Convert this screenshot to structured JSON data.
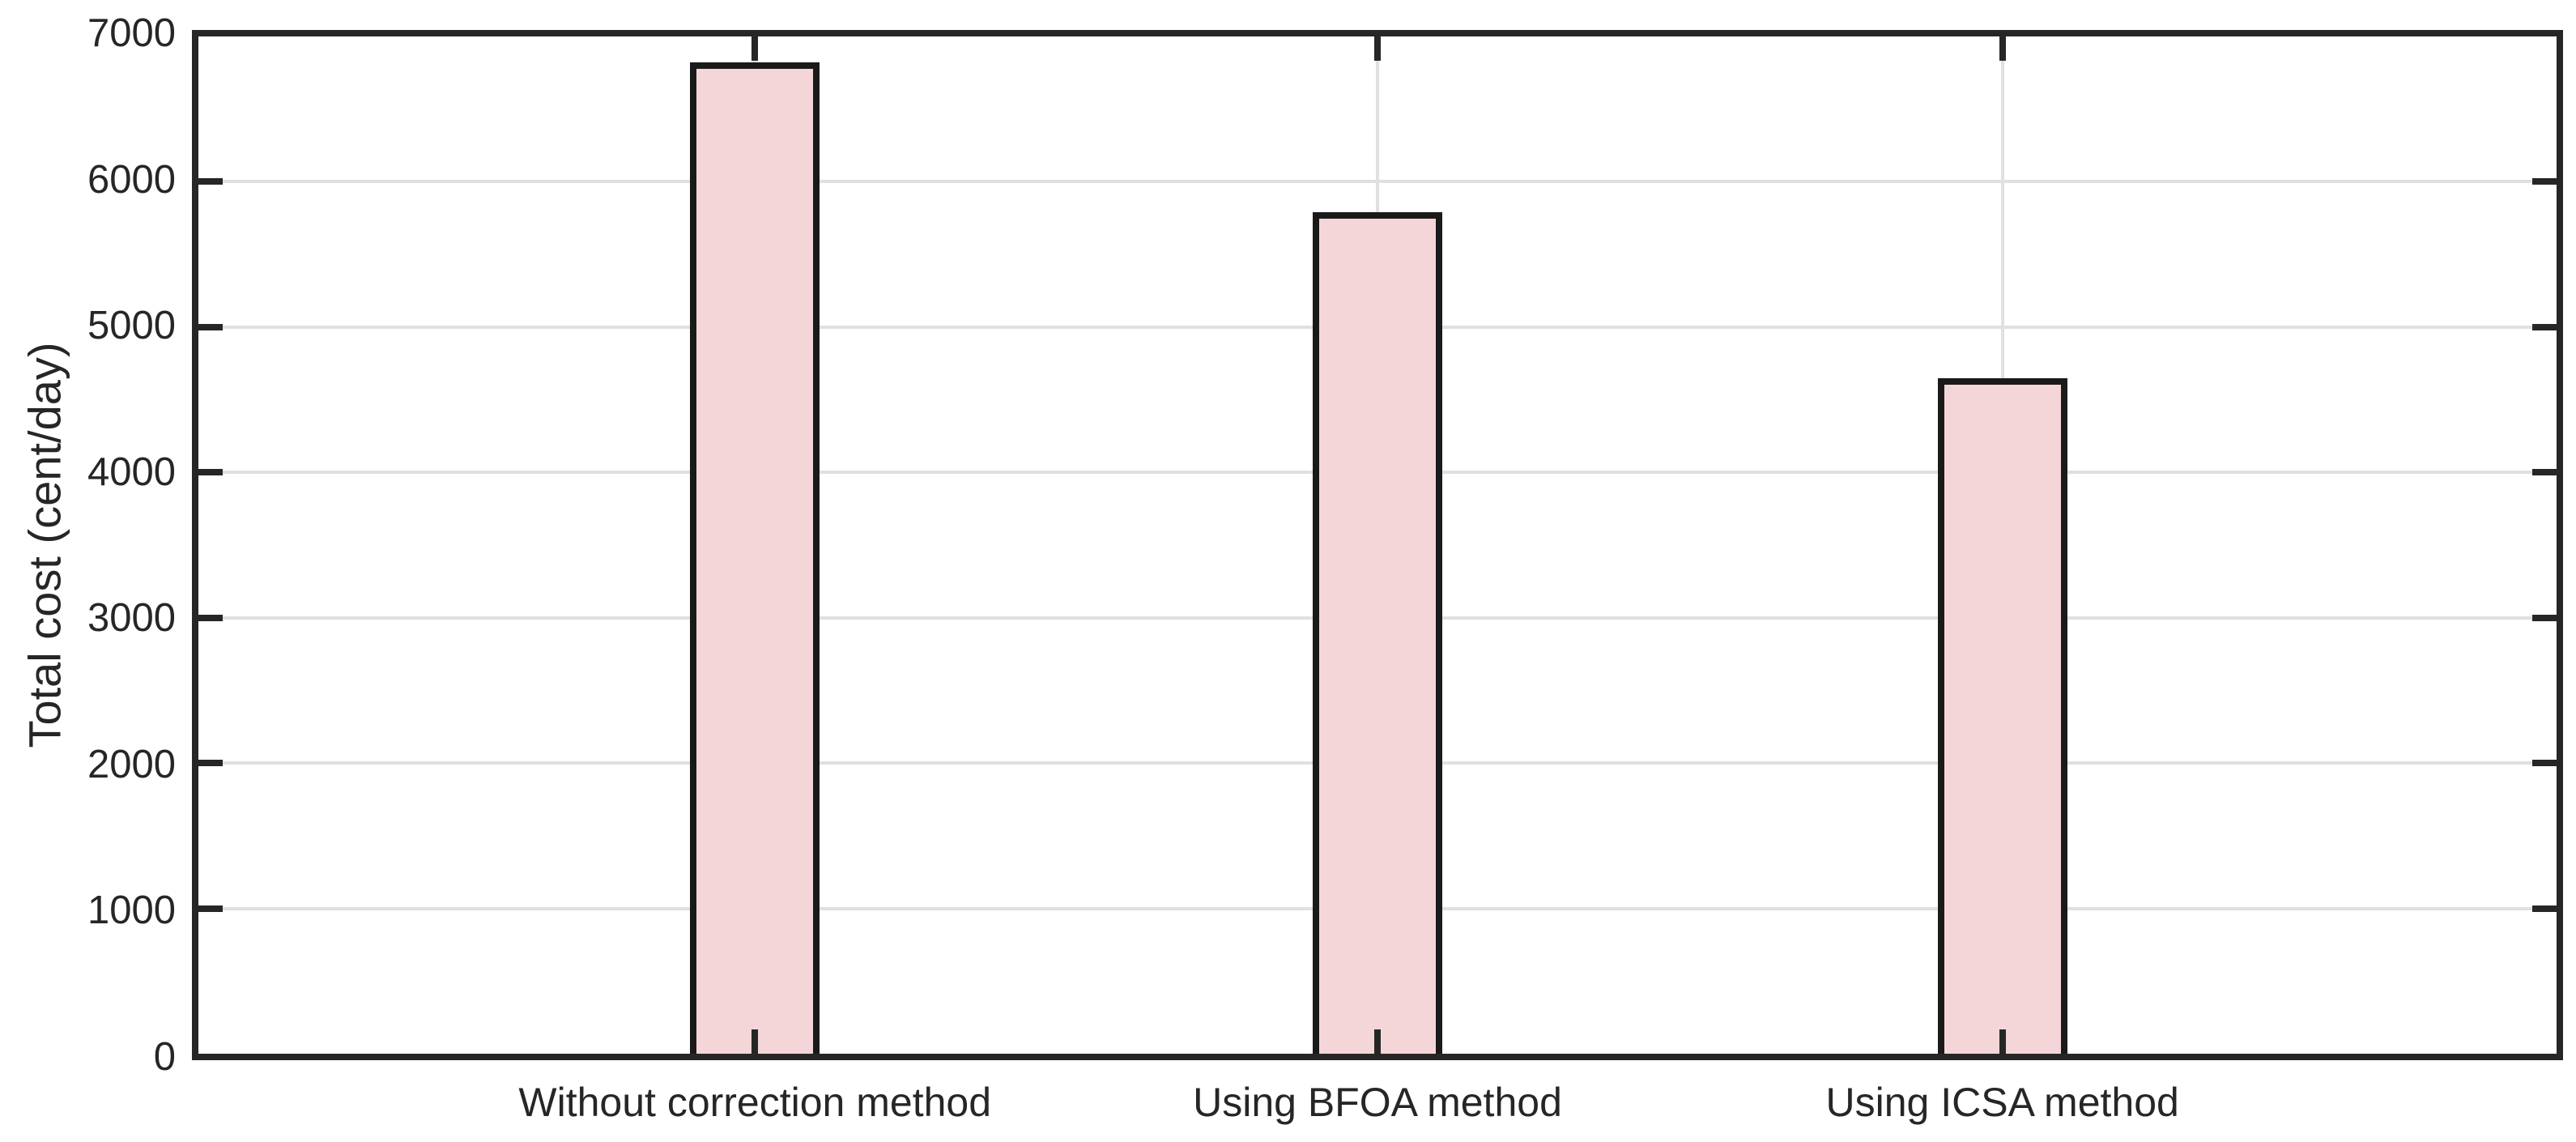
{
  "chart_data": {
    "type": "bar",
    "title": "",
    "categories": [
      "Without correction method",
      "Using BFOA method",
      "Using ICSA method"
    ],
    "values": [
      6820,
      5790,
      4650
    ],
    "xlabel": "",
    "ylabel": "Total cost (cent/day)",
    "ylim": [
      0,
      7000
    ],
    "yticks": [
      0,
      1000,
      2000,
      3000,
      4000,
      5000,
      6000,
      7000
    ],
    "grid": "on",
    "legend_position": "none",
    "colors": {
      "bar_fill": "#f5d6d8",
      "bar_edge": "#1a1a1a",
      "axis": "#262626",
      "grid": "#e0e0e0",
      "tick_text": "#262626"
    }
  }
}
